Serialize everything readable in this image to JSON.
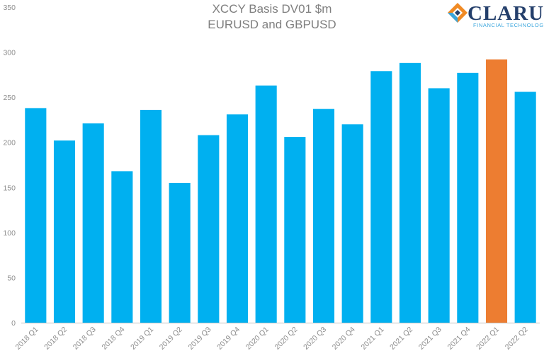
{
  "chart_data": {
    "type": "bar",
    "title": "XCCY Basis DV01 $m",
    "subtitle": "EURUSD and GBPUSD",
    "xlabel": "",
    "ylabel": "",
    "ylim": [
      0,
      350
    ],
    "yticks": [
      0,
      50,
      100,
      150,
      200,
      250,
      300,
      350
    ],
    "grid": false,
    "categories": [
      "2018 Q1",
      "2018 Q2",
      "2018 Q3",
      "2018 Q4",
      "2019 Q1",
      "2019 Q2",
      "2019 Q3",
      "2019 Q4",
      "2020 Q1",
      "2020 Q2",
      "2020 Q3",
      "2020 Q4",
      "2021 Q1",
      "2021 Q2",
      "2021 Q3",
      "2021 Q4",
      "2022 Q1",
      "2022 Q2"
    ],
    "values": [
      238,
      202,
      221,
      168,
      236,
      155,
      208,
      231,
      263,
      206,
      237,
      220,
      279,
      288,
      260,
      277,
      292,
      256
    ],
    "colors": {
      "default": "#00b0f0",
      "highlight": "#ed7d31",
      "highlight_index": 16,
      "axis": "#bfbfbf"
    }
  },
  "logo": {
    "name": "CLARUS",
    "tagline": "FINANCIAL TECHNOLOGY",
    "colors": {
      "navy": "#243f6b",
      "orange": "#f08a24",
      "blue": "#3aa6dd"
    }
  }
}
